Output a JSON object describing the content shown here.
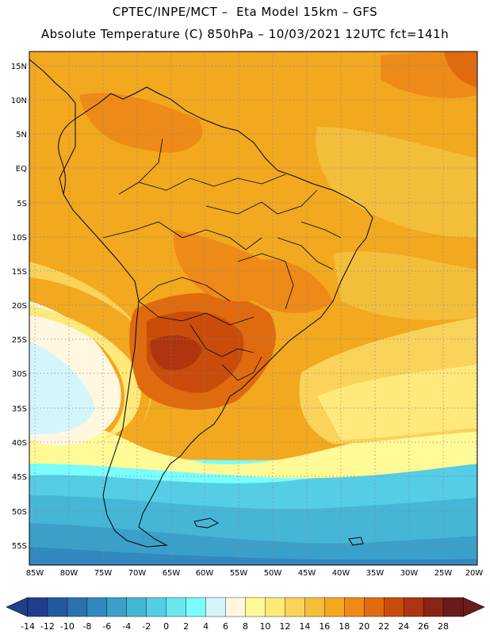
{
  "header": {
    "line1": "CPTEC/INPE/MCT –  Eta Model 15km – GFS",
    "line2": "Absolute Temperature (C) 850hPa – 10/03/2021 12UTC fct=141h"
  },
  "map": {
    "lat_labels": [
      "15N",
      "10N",
      "5N",
      "EQ",
      "5S",
      "10S",
      "15S",
      "20S",
      "25S",
      "30S",
      "35S",
      "40S",
      "45S",
      "50S",
      "55S"
    ],
    "lon_labels": [
      "85W",
      "80W",
      "75W",
      "70W",
      "65W",
      "60W",
      "55W",
      "50W",
      "45W",
      "40W",
      "35W",
      "30W",
      "25W",
      "20W"
    ]
  },
  "colorbar": {
    "colors": [
      "#1f3f8c",
      "#235a9e",
      "#2a72b0",
      "#3189bf",
      "#3aa0c9",
      "#45b6d6",
      "#55cde4",
      "#6ae6ef",
      "#79fdfd",
      "#d3f6fb",
      "#fff7df",
      "#fffa96",
      "#fee97a",
      "#f9d35a",
      "#f3be3a",
      "#f2a81f",
      "#ee8a17",
      "#e06b0e",
      "#c94c0b",
      "#ae3510",
      "#8a2415",
      "#6a1b1b"
    ],
    "min_color": "#1f3f8c",
    "max_color": "#6a1b1b",
    "tick_labels": [
      "-14",
      "-12",
      "-10",
      "-8",
      "-6",
      "-4",
      "-2",
      "0",
      "2",
      "4",
      "6",
      "8",
      "10",
      "12",
      "14",
      "16",
      "18",
      "20",
      "22",
      "24",
      "26",
      "28"
    ]
  }
}
